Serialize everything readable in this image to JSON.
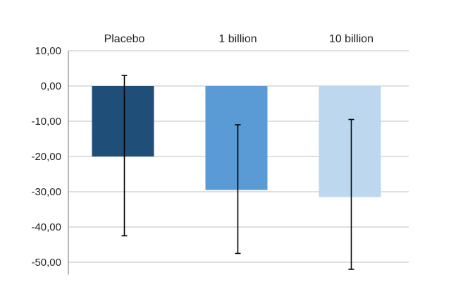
{
  "chart_data": {
    "type": "bar",
    "title": "",
    "xlabel": "",
    "ylabel": "",
    "categories": [
      "Placebo",
      "1 billion",
      "10 billion"
    ],
    "values": [
      -20.0,
      -29.5,
      -31.5
    ],
    "error_bars": [
      {
        "low": -42.5,
        "high": 3.0
      },
      {
        "low": -47.5,
        "high": -11.0
      },
      {
        "low": -52.0,
        "high": -9.5
      }
    ],
    "colors": [
      "#1f4e79",
      "#5b9bd5",
      "#bdd7ee"
    ],
    "ylim": [
      -53.5,
      10
    ],
    "yticks": [
      10,
      0,
      -10,
      -20,
      -30,
      -40,
      -50
    ],
    "ytick_labels": [
      "10,00",
      "0,00",
      "-10,00",
      "-20,00",
      "-30,00",
      "-40,00",
      "-50,00"
    ],
    "category_labels_position": "top",
    "grid": true,
    "legend": false
  }
}
